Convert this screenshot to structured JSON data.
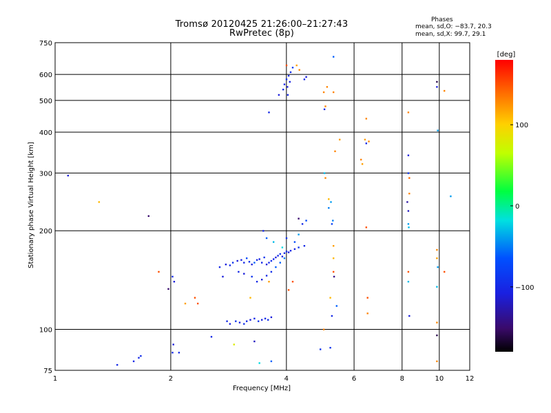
{
  "header": {
    "title": "Tromsø 20120425 21:26:00–21:27:43",
    "subtitle": "RwPretec (8p)",
    "phases_label": "Phases",
    "mean_o": "mean, sd,O: −83.7, 20.3",
    "mean_x": "mean, sd,X: 99.7, 29.1"
  },
  "colorbar": {
    "label": "[deg]",
    "ticks": [
      {
        "label": "100",
        "value": 100
      },
      {
        "label": "0",
        "value": 0
      },
      {
        "label": "−100",
        "value": -100
      }
    ],
    "range": [
      -180,
      180
    ]
  },
  "chart_data": {
    "type": "scatter",
    "title": "Tromsø 20120425 21:26:00–21:27:43",
    "subtitle": "RwPretec (8p)",
    "xlabel": "Frequency [MHz]",
    "ylabel": "Stationary phase Virtual Height [km]",
    "xscale": "log",
    "yscale": "log",
    "xlim": [
      1,
      12
    ],
    "ylim": [
      75,
      750
    ],
    "grid": true,
    "xticks": [
      {
        "label": "1",
        "value": 1
      },
      {
        "label": "2",
        "value": 2
      },
      {
        "label": "4",
        "value": 4
      },
      {
        "label": "6",
        "value": 6
      },
      {
        "label": "8",
        "value": 8
      },
      {
        "label": "10",
        "value": 10
      },
      {
        "label": "12",
        "value": 12
      }
    ],
    "yticks": [
      {
        "label": "75",
        "value": 75
      },
      {
        "label": "100",
        "value": 100
      },
      {
        "label": "200",
        "value": 200
      },
      {
        "label": "300",
        "value": 300
      },
      {
        "label": "400",
        "value": 400
      },
      {
        "label": "500",
        "value": 500
      },
      {
        "label": "600",
        "value": 600
      },
      {
        "label": "750",
        "value": 750
      }
    ],
    "color_variable": "phase [deg]",
    "points": [
      [
        1.08,
        295,
        -110
      ],
      [
        1.3,
        245,
        110
      ],
      [
        1.45,
        78,
        -100
      ],
      [
        1.6,
        80,
        -100
      ],
      [
        1.65,
        82,
        -100
      ],
      [
        1.67,
        83,
        -95
      ],
      [
        1.75,
        222,
        -150
      ],
      [
        1.86,
        150,
        150
      ],
      [
        1.97,
        133,
        -150
      ],
      [
        2.03,
        90,
        -110
      ],
      [
        2.02,
        145,
        -100
      ],
      [
        2.04,
        140,
        -110
      ],
      [
        2.02,
        85,
        -100
      ],
      [
        2.1,
        85,
        -100
      ],
      [
        2.18,
        120,
        120
      ],
      [
        2.31,
        125,
        150
      ],
      [
        2.35,
        120,
        150
      ],
      [
        2.55,
        95,
        -100
      ],
      [
        2.68,
        155,
        -100
      ],
      [
        2.73,
        145,
        -110
      ],
      [
        2.8,
        106,
        -100
      ],
      [
        2.85,
        104,
        -110
      ],
      [
        2.95,
        106,
        -90
      ],
      [
        3.02,
        105,
        -105
      ],
      [
        3.1,
        104,
        -95
      ],
      [
        3.15,
        106,
        -100
      ],
      [
        3.22,
        107,
        -110
      ],
      [
        3.3,
        108,
        -100
      ],
      [
        3.38,
        106,
        -90
      ],
      [
        3.45,
        107,
        -105
      ],
      [
        3.52,
        108,
        -100
      ],
      [
        3.58,
        107,
        -95
      ],
      [
        3.65,
        109,
        -110
      ],
      [
        2.78,
        158,
        -110
      ],
      [
        2.85,
        157,
        -100
      ],
      [
        2.9,
        160,
        -90
      ],
      [
        2.98,
        162,
        -110
      ],
      [
        3.05,
        163,
        -105
      ],
      [
        3.1,
        160,
        -100
      ],
      [
        3.15,
        165,
        -70
      ],
      [
        3.2,
        161,
        -95
      ],
      [
        3.25,
        158,
        -110
      ],
      [
        3.3,
        160,
        -60
      ],
      [
        3.35,
        163,
        -100
      ],
      [
        3.4,
        164,
        -105
      ],
      [
        3.45,
        160,
        -100
      ],
      [
        3.5,
        166,
        -90
      ],
      [
        3.55,
        158,
        -110
      ],
      [
        3.6,
        160,
        -100
      ],
      [
        3.65,
        162,
        -95
      ],
      [
        3.7,
        164,
        -100
      ],
      [
        3.75,
        166,
        -110
      ],
      [
        3.8,
        168,
        -100
      ],
      [
        3.85,
        170,
        -90
      ],
      [
        3.9,
        167,
        -105
      ],
      [
        3.95,
        171,
        -100
      ],
      [
        4.0,
        173,
        -95
      ],
      [
        4.05,
        172,
        -110
      ],
      [
        4.1,
        174,
        -100
      ],
      [
        4.2,
        176,
        -105
      ],
      [
        4.3,
        178,
        -90
      ],
      [
        4.45,
        180,
        -100
      ],
      [
        3.0,
        150,
        -100
      ],
      [
        3.1,
        148,
        -110
      ],
      [
        3.25,
        145,
        -90
      ],
      [
        3.35,
        140,
        -100
      ],
      [
        3.45,
        142,
        -110
      ],
      [
        3.55,
        146,
        -100
      ],
      [
        3.65,
        150,
        -95
      ],
      [
        3.75,
        155,
        -60
      ],
      [
        3.85,
        160,
        -60
      ],
      [
        3.95,
        165,
        -50
      ],
      [
        3.55,
        190,
        -60
      ],
      [
        3.48,
        200,
        -100
      ],
      [
        3.7,
        185,
        -30
      ],
      [
        3.9,
        178,
        -20
      ],
      [
        4.0,
        190,
        -90
      ],
      [
        4.2,
        185,
        -70
      ],
      [
        4.3,
        195,
        -40
      ],
      [
        3.22,
        125,
        110
      ],
      [
        3.6,
        140,
        120
      ],
      [
        4.05,
        132,
        150
      ],
      [
        4.15,
        140,
        150
      ],
      [
        4.3,
        218,
        -150
      ],
      [
        4.4,
        210,
        -100
      ],
      [
        4.5,
        215,
        -70
      ],
      [
        3.3,
        92,
        -120
      ],
      [
        2.92,
        90,
        80
      ],
      [
        3.4,
        79,
        -20
      ],
      [
        3.65,
        80,
        -60
      ],
      [
        3.6,
        460,
        -100
      ],
      [
        3.82,
        520,
        -110
      ],
      [
        3.92,
        540,
        -100
      ],
      [
        3.95,
        560,
        -105
      ],
      [
        4.0,
        580,
        -90
      ],
      [
        4.02,
        550,
        -110
      ],
      [
        4.05,
        595,
        -100
      ],
      [
        4.08,
        570,
        -105
      ],
      [
        4.1,
        610,
        -95
      ],
      [
        4.15,
        630,
        -80
      ],
      [
        4.25,
        640,
        120
      ],
      [
        4.32,
        620,
        130
      ],
      [
        4.0,
        640,
        150
      ],
      [
        4.45,
        580,
        -100
      ],
      [
        4.5,
        590,
        -110
      ],
      [
        4.03,
        520,
        -100
      ],
      [
        5.0,
        530,
        130
      ],
      [
        5.02,
        470,
        -100
      ],
      [
        5.05,
        480,
        130
      ],
      [
        5.1,
        550,
        130
      ],
      [
        5.3,
        680,
        -60
      ],
      [
        5.3,
        530,
        130
      ],
      [
        5.5,
        380,
        120
      ],
      [
        5.35,
        350,
        130
      ],
      [
        5.05,
        290,
        130
      ],
      [
        5.02,
        300,
        -30
      ],
      [
        5.15,
        250,
        110
      ],
      [
        5.22,
        245,
        -40
      ],
      [
        5.15,
        235,
        -50
      ],
      [
        5.25,
        210,
        -80
      ],
      [
        5.28,
        215,
        -50
      ],
      [
        5.3,
        180,
        120
      ],
      [
        5.3,
        165,
        110
      ],
      [
        5.3,
        150,
        150
      ],
      [
        5.32,
        145,
        -140
      ],
      [
        5.2,
        125,
        110
      ],
      [
        5.4,
        118,
        -60
      ],
      [
        5.25,
        110,
        -100
      ],
      [
        5.0,
        100,
        130
      ],
      [
        5.2,
        88,
        -90
      ],
      [
        4.9,
        87,
        -90
      ],
      [
        6.25,
        330,
        130
      ],
      [
        6.3,
        320,
        120
      ],
      [
        6.4,
        380,
        120
      ],
      [
        6.45,
        370,
        -100
      ],
      [
        6.55,
        375,
        130
      ],
      [
        6.45,
        440,
        130
      ],
      [
        6.45,
        205,
        150
      ],
      [
        6.5,
        125,
        150
      ],
      [
        6.5,
        112,
        130
      ],
      [
        8.3,
        460,
        130
      ],
      [
        8.3,
        340,
        -110
      ],
      [
        8.3,
        300,
        -90
      ],
      [
        8.35,
        290,
        140
      ],
      [
        8.35,
        260,
        130
      ],
      [
        8.25,
        245,
        -130
      ],
      [
        8.3,
        230,
        -120
      ],
      [
        8.3,
        210,
        -40
      ],
      [
        8.32,
        205,
        -30
      ],
      [
        8.3,
        150,
        150
      ],
      [
        8.3,
        140,
        -30
      ],
      [
        8.35,
        110,
        -110
      ],
      [
        9.85,
        570,
        -160
      ],
      [
        9.85,
        550,
        -110
      ],
      [
        10.3,
        535,
        130
      ],
      [
        9.9,
        405,
        -40
      ],
      [
        9.85,
        175,
        130
      ],
      [
        9.85,
        165,
        120
      ],
      [
        9.9,
        155,
        -40
      ],
      [
        10.3,
        150,
        150
      ],
      [
        9.85,
        135,
        -30
      ],
      [
        9.85,
        105,
        130
      ],
      [
        9.85,
        96,
        -160
      ],
      [
        9.85,
        80,
        130
      ],
      [
        10.7,
        255,
        -40
      ]
    ]
  }
}
